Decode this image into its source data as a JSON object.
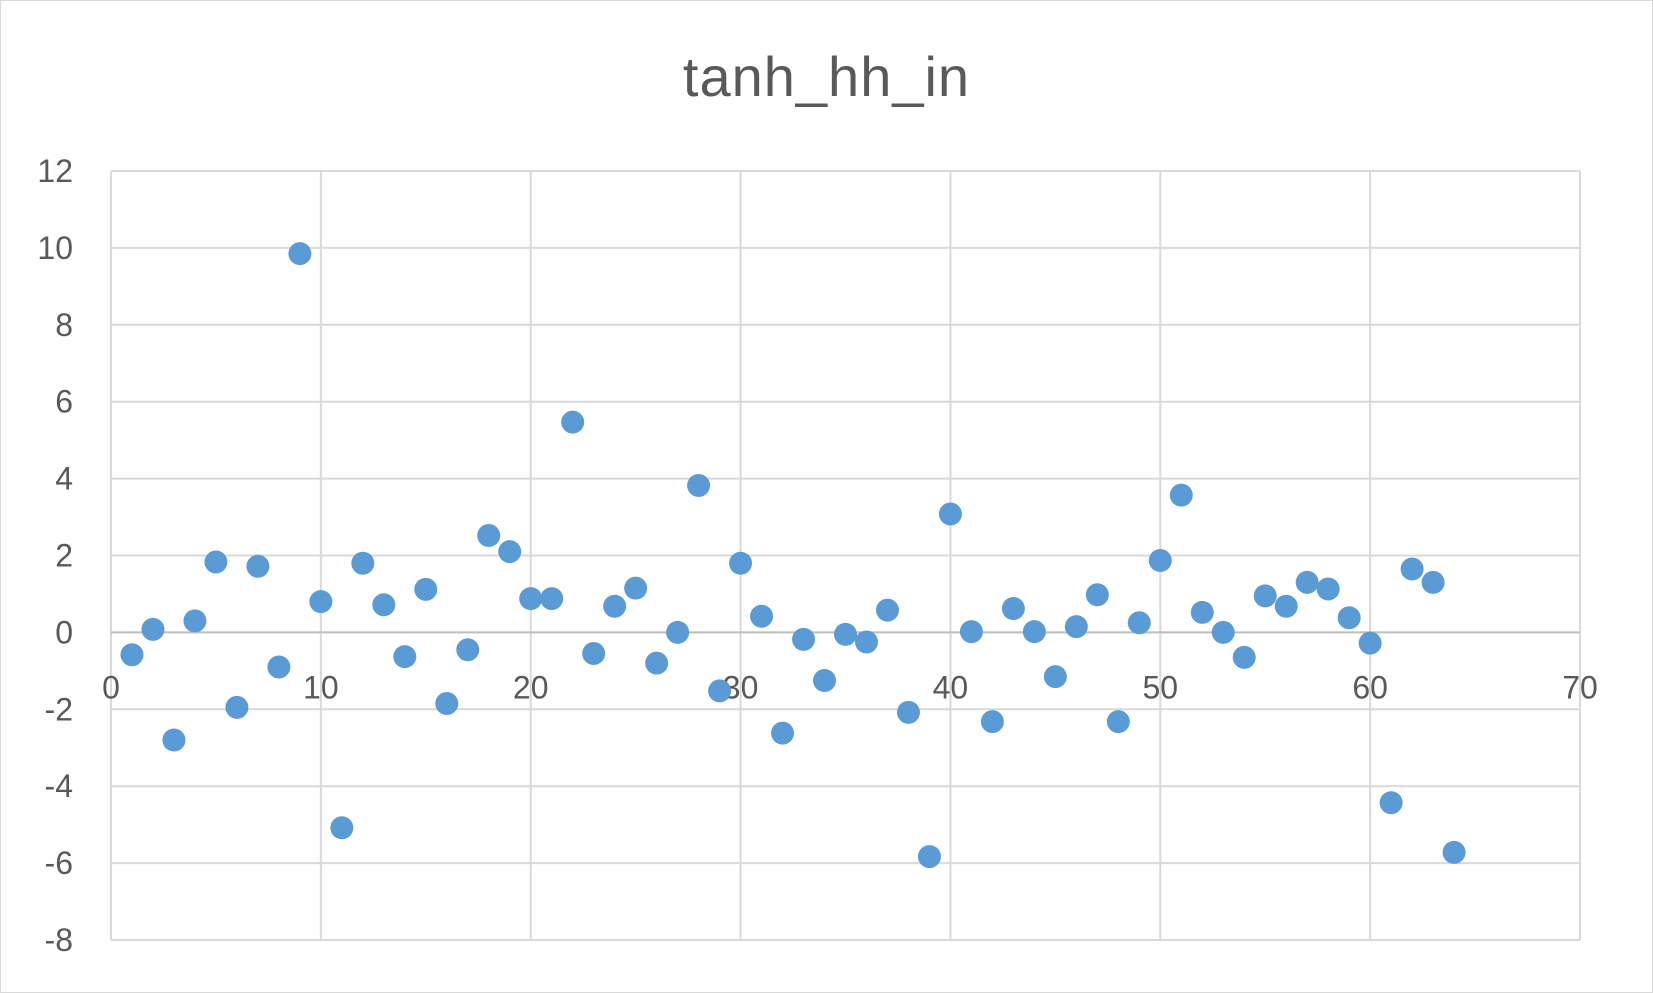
{
  "chart_data": {
    "type": "scatter",
    "title": "tanh_hh_in",
    "xlabel": "",
    "ylabel": "",
    "xlim": [
      0,
      70
    ],
    "ylim": [
      -8,
      12
    ],
    "x_ticks": [
      0,
      10,
      20,
      30,
      40,
      50,
      60,
      70
    ],
    "y_ticks": [
      12,
      10,
      8,
      6,
      4,
      2,
      0,
      -2,
      -4,
      -6,
      -8
    ],
    "grid": true,
    "legend": "none",
    "marker_color": "#5b9bd5",
    "series": [
      {
        "x": [
          1,
          2,
          3,
          4,
          5,
          6,
          7,
          8,
          9,
          10,
          11,
          12,
          13,
          14,
          15,
          16,
          17,
          18,
          19,
          20,
          21,
          22,
          23,
          24,
          25,
          26,
          27,
          28,
          29,
          30,
          31,
          32,
          33,
          34,
          35,
          36,
          37,
          38,
          39,
          40,
          41,
          42,
          43,
          44,
          45,
          46,
          47,
          48,
          49,
          50,
          51,
          52,
          53,
          54,
          55,
          56,
          57,
          58,
          59,
          60,
          61,
          62,
          63,
          64
        ],
        "y": [
          -0.58,
          0.08,
          -2.8,
          0.3,
          1.83,
          -1.95,
          1.72,
          -0.9,
          9.85,
          0.8,
          -5.08,
          1.8,
          0.72,
          -0.63,
          1.12,
          -1.85,
          -0.45,
          2.52,
          2.1,
          0.88,
          0.88,
          5.47,
          -0.55,
          0.68,
          1.15,
          -0.8,
          0.0,
          3.82,
          -1.52,
          1.8,
          0.42,
          -2.62,
          -0.18,
          -1.25,
          -0.05,
          -0.25,
          0.58,
          -2.08,
          -5.83,
          3.08,
          0.02,
          -2.32,
          0.62,
          0.02,
          -1.15,
          0.15,
          0.98,
          -2.32,
          0.25,
          1.87,
          3.57,
          0.52,
          0.0,
          -0.65,
          0.95,
          0.68,
          1.3,
          1.13,
          0.38,
          -0.28,
          -4.43,
          1.65,
          1.3,
          -5.72
        ]
      }
    ]
  }
}
